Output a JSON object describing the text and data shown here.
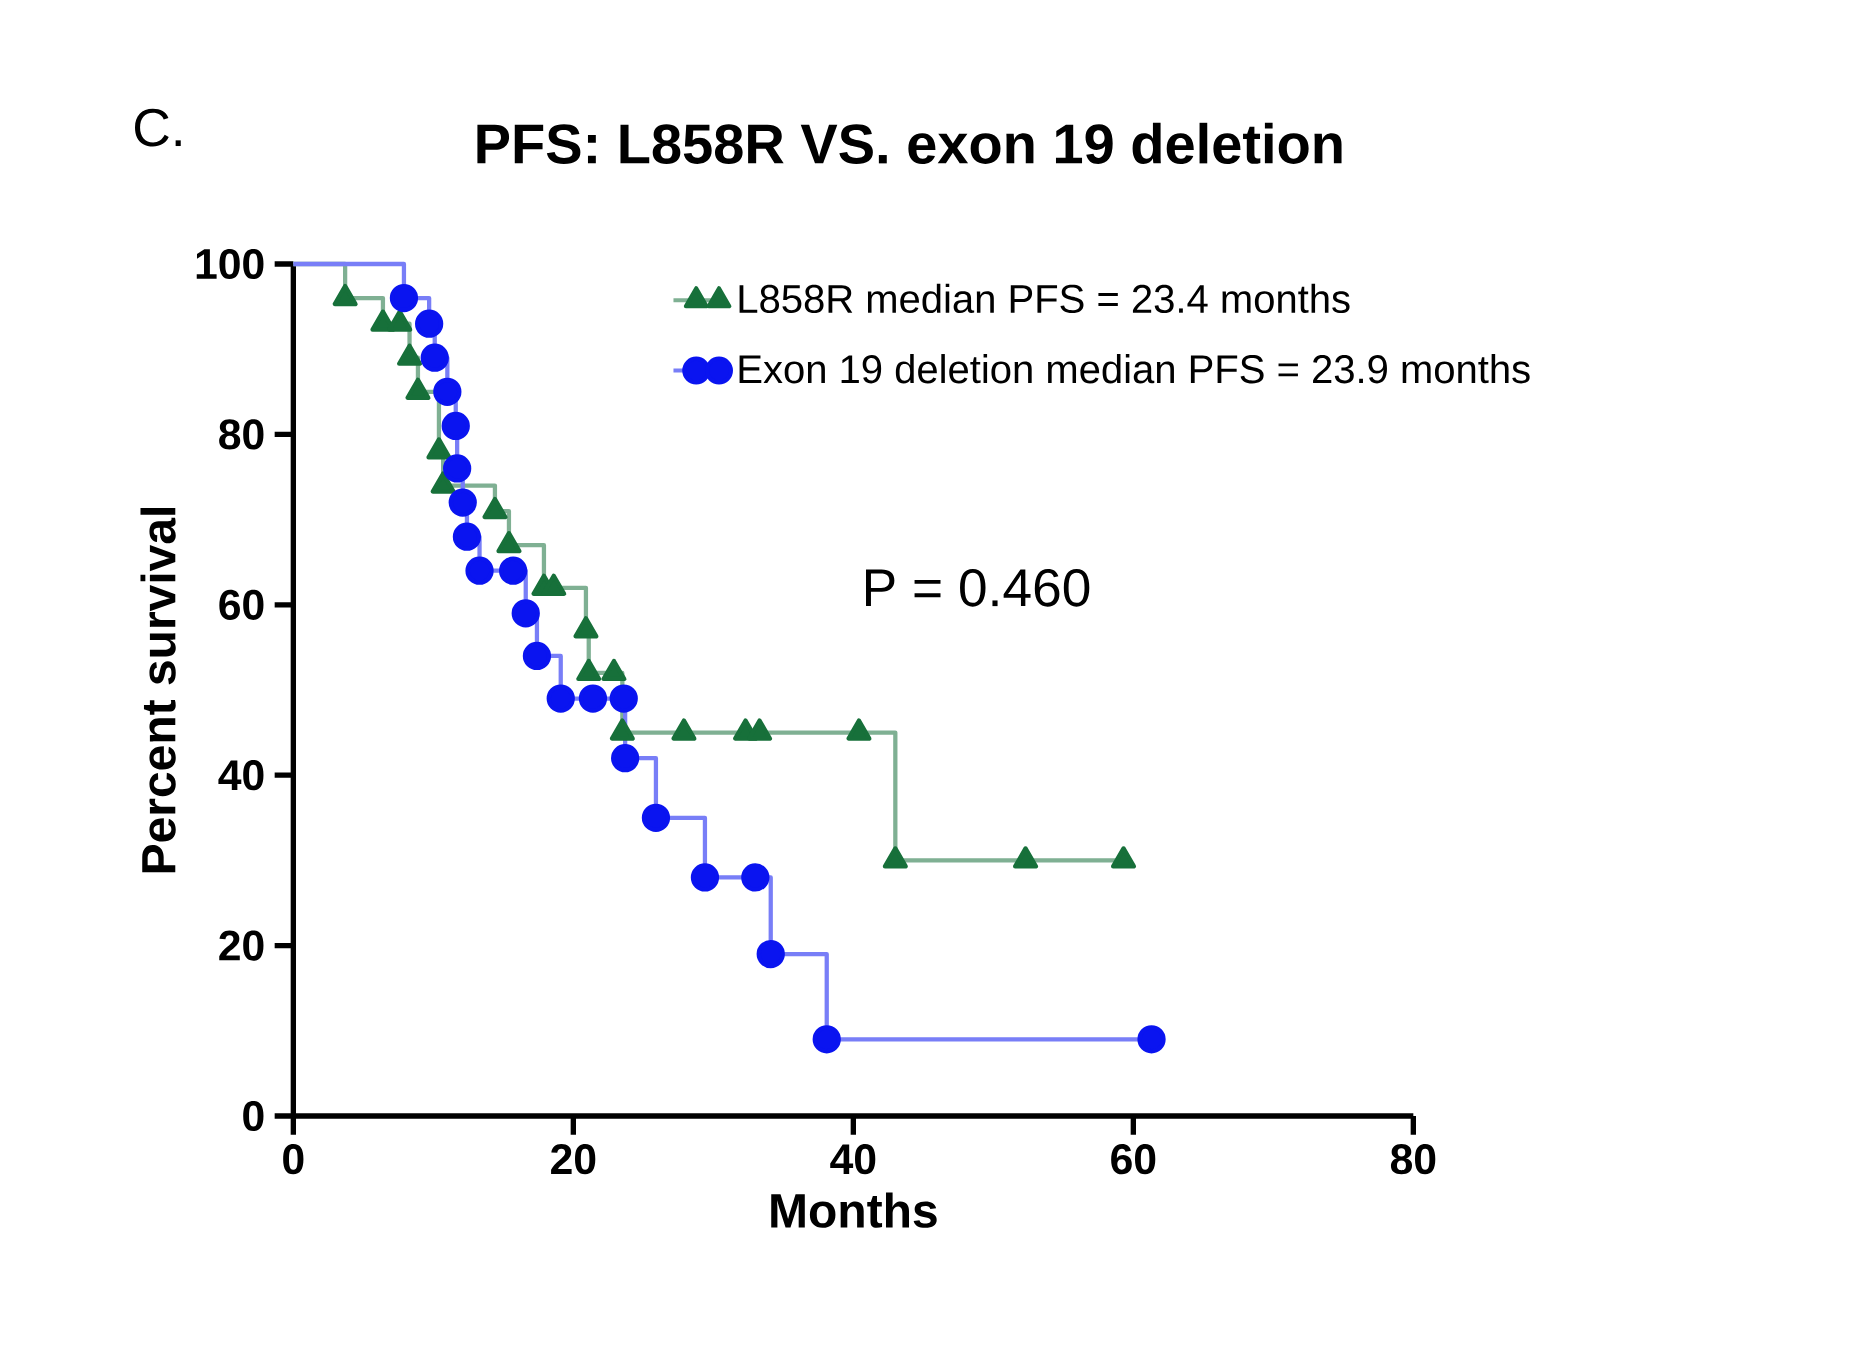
{
  "chart_data": {
    "type": "step",
    "title": "PFS: L858R VS. exon 19 deletion",
    "xlabel": "Months",
    "ylabel": "Percent survival",
    "annotations": [
      "C.",
      "P = 0.460"
    ],
    "xlim": [
      0,
      80
    ],
    "ylim": [
      0,
      100
    ],
    "xticks": [
      0,
      20,
      40,
      60,
      80
    ],
    "yticks": [
      0,
      20,
      40,
      60,
      80,
      100
    ],
    "grid": false,
    "legend": "top right",
    "series": [
      {
        "name": "L858R median PFS = 23.4 months",
        "color": "#17703a",
        "marker": "triangle",
        "x": [
          0,
          3.7,
          6.4,
          7.6,
          8.3,
          8.9,
          10.4,
          10.7,
          14.4,
          15.4,
          17.9,
          18.6,
          20.9,
          21.1,
          22.9,
          23.5,
          27.9,
          32.3,
          33.3,
          40.4,
          43,
          52.3,
          59.3
        ],
        "values": [
          100,
          96,
          93,
          93,
          89,
          85,
          78,
          74,
          71,
          67,
          62,
          62,
          57,
          52,
          52,
          45,
          45,
          45,
          45,
          45,
          30,
          30,
          30
        ]
      },
      {
        "name": "Exon 19 deletion median PFS = 23.9 months",
        "color": "#0a14f0",
        "marker": "circle",
        "x": [
          0,
          7.9,
          9.7,
          10.1,
          11,
          11.6,
          11.7,
          12.1,
          12.4,
          13.3,
          15.7,
          16.6,
          17.4,
          19.1,
          21.4,
          23.6,
          23.7,
          25.9,
          29.4,
          33,
          34.1,
          38.1,
          61.3
        ],
        "values": [
          100,
          96,
          93,
          89,
          85,
          81,
          76,
          72,
          68,
          64,
          64,
          59,
          54,
          49,
          49,
          49,
          42,
          35,
          28,
          28,
          19,
          9,
          9
        ]
      }
    ]
  }
}
